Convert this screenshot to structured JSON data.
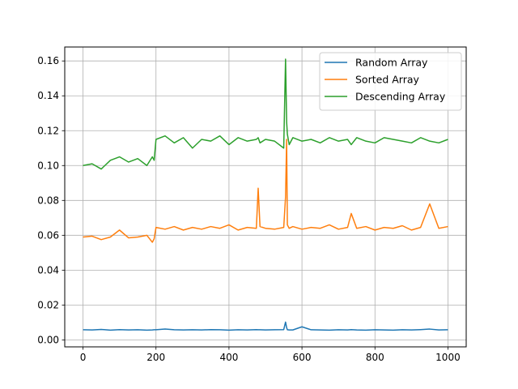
{
  "chart_data": {
    "type": "line",
    "title": "",
    "xlabel": "",
    "ylabel": "",
    "xlim": [
      -50,
      1050
    ],
    "ylim": [
      -0.004,
      0.168
    ],
    "xticks": [
      0,
      200,
      400,
      600,
      800,
      1000
    ],
    "xtick_labels": [
      "0",
      "200",
      "400",
      "600",
      "800",
      "1000"
    ],
    "yticks": [
      0.0,
      0.02,
      0.04,
      0.06,
      0.08,
      0.1,
      0.12,
      0.14,
      0.16
    ],
    "ytick_labels": [
      "0.00",
      "0.02",
      "0.04",
      "0.06",
      "0.08",
      "0.10",
      "0.12",
      "0.14",
      "0.16"
    ],
    "grid": true,
    "legend_position": "top-right",
    "x": [
      0,
      25,
      50,
      75,
      100,
      125,
      150,
      175,
      190,
      195,
      200,
      225,
      250,
      275,
      300,
      325,
      350,
      375,
      400,
      425,
      450,
      475,
      480,
      485,
      500,
      525,
      550,
      555,
      558,
      560,
      565,
      575,
      600,
      625,
      650,
      675,
      700,
      725,
      735,
      750,
      775,
      800,
      825,
      850,
      875,
      900,
      925,
      950,
      975,
      1000
    ],
    "series": [
      {
        "name": "Random Array",
        "color": "#1f77b4",
        "values": [
          0.0058,
          0.0057,
          0.006,
          0.0056,
          0.0059,
          0.0057,
          0.0058,
          0.0056,
          0.0057,
          0.0058,
          0.0058,
          0.0062,
          0.0058,
          0.0057,
          0.0058,
          0.0057,
          0.0059,
          0.0058,
          0.0056,
          0.0058,
          0.0057,
          0.0059,
          0.0058,
          0.0058,
          0.0057,
          0.0058,
          0.0059,
          0.0102,
          0.007,
          0.0058,
          0.0057,
          0.0057,
          0.0075,
          0.0058,
          0.0057,
          0.0056,
          0.0058,
          0.0057,
          0.0059,
          0.0057,
          0.0056,
          0.0058,
          0.0057,
          0.0056,
          0.0058,
          0.0057,
          0.0059,
          0.0062,
          0.0057,
          0.0058
        ]
      },
      {
        "name": "Sorted Array",
        "color": "#ff7f0e",
        "values": [
          0.059,
          0.0595,
          0.0575,
          0.059,
          0.063,
          0.0585,
          0.059,
          0.06,
          0.056,
          0.058,
          0.0645,
          0.0635,
          0.065,
          0.063,
          0.0645,
          0.0635,
          0.065,
          0.064,
          0.066,
          0.063,
          0.0645,
          0.064,
          0.087,
          0.065,
          0.064,
          0.0635,
          0.0645,
          0.082,
          0.115,
          0.066,
          0.064,
          0.065,
          0.0635,
          0.0645,
          0.064,
          0.066,
          0.0635,
          0.0645,
          0.0725,
          0.064,
          0.065,
          0.063,
          0.0645,
          0.064,
          0.0655,
          0.063,
          0.0645,
          0.078,
          0.064,
          0.065
        ]
      },
      {
        "name": "Descending Array",
        "color": "#2ca02c",
        "values": [
          0.1,
          0.101,
          0.098,
          0.103,
          0.105,
          0.102,
          0.104,
          0.1,
          0.105,
          0.103,
          0.115,
          0.117,
          0.113,
          0.116,
          0.11,
          0.115,
          0.114,
          0.117,
          0.112,
          0.116,
          0.114,
          0.115,
          0.116,
          0.113,
          0.115,
          0.114,
          0.11,
          0.161,
          0.125,
          0.118,
          0.112,
          0.116,
          0.114,
          0.115,
          0.113,
          0.116,
          0.114,
          0.115,
          0.112,
          0.116,
          0.114,
          0.113,
          0.116,
          0.115,
          0.114,
          0.113,
          0.116,
          0.114,
          0.113,
          0.115
        ]
      }
    ]
  }
}
